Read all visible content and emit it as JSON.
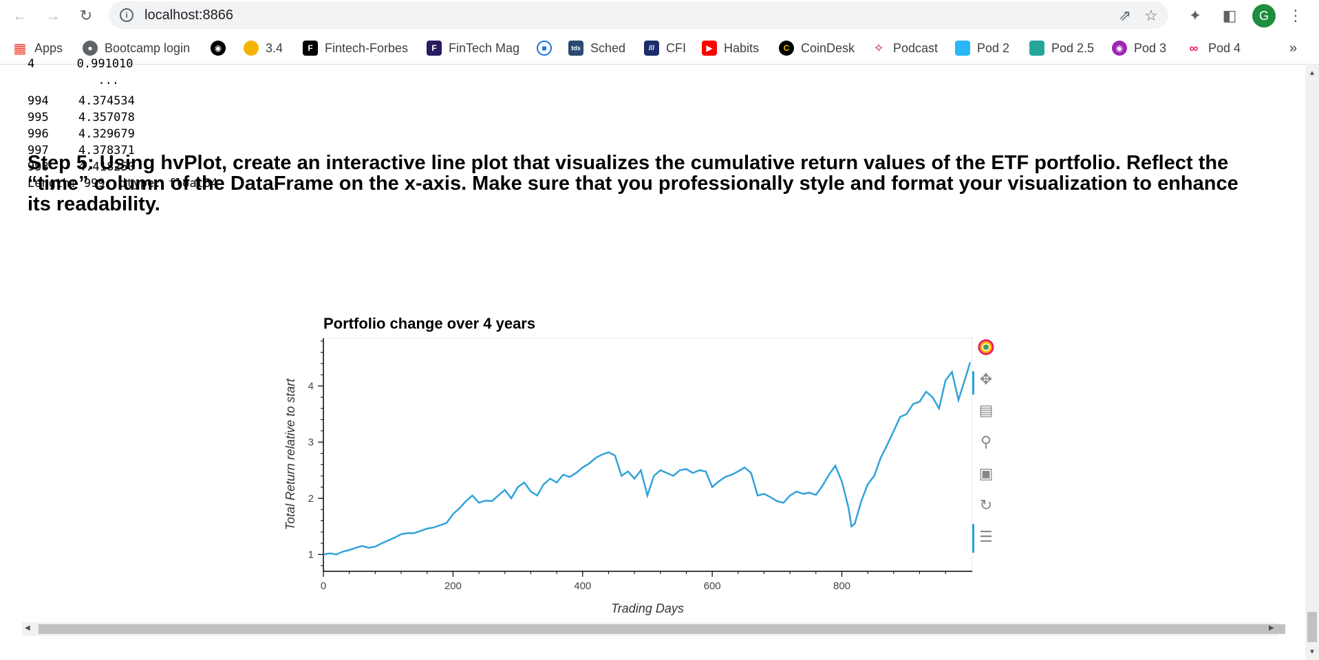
{
  "browser": {
    "url": "localhost:8866",
    "avatar_letter": "G",
    "bookmarks": [
      {
        "label": "Apps",
        "icon": "apps-grid-icon",
        "color": "#ea4335"
      },
      {
        "label": "Bootcamp login",
        "icon": "globe-icon",
        "color": "#5f6368"
      },
      {
        "label": "",
        "icon": "github-icon",
        "color": "#000000"
      },
      {
        "label": "3.4",
        "icon": "coin-icon",
        "color": "#f4b400"
      },
      {
        "label": "Fintech-Forbes",
        "icon": "forbes-icon",
        "color": "#000000"
      },
      {
        "label": "FinTech Mag",
        "icon": "fintech-mag-icon",
        "color": "#2a1a5e"
      },
      {
        "label": "",
        "icon": "circle-logo-icon",
        "color": "#1a73e8"
      },
      {
        "label": "Sched",
        "icon": "tds-icon",
        "color": "#2b4a6f"
      },
      {
        "label": "CFI",
        "icon": "cfi-icon",
        "color": "#1b2b6b"
      },
      {
        "label": "Habits",
        "icon": "youtube-icon",
        "color": "#ff0000"
      },
      {
        "label": "CoinDesk",
        "icon": "coindesk-icon",
        "color": "#000000"
      },
      {
        "label": "Podcast",
        "icon": "podcast-icon",
        "color": "#c2185b"
      },
      {
        "label": "Pod 2",
        "icon": "pod2-icon",
        "color": "#29b6f6"
      },
      {
        "label": "Pod 2.5",
        "icon": "pod25-icon",
        "color": "#26a69a"
      },
      {
        "label": "Pod 3",
        "icon": "apple-podcast-icon",
        "color": "#9c27b0"
      },
      {
        "label": "Pod 4",
        "icon": "pod4-icon",
        "color": "#e91e63"
      }
    ],
    "more_bookmarks": "»"
  },
  "output": {
    "cut_line": "4      0.991010",
    "ellipsis": "          ...",
    "rows": [
      {
        "index": "994",
        "value": "4.374534"
      },
      {
        "index": "995",
        "value": "4.357078"
      },
      {
        "index": "996",
        "value": "4.329679"
      },
      {
        "index": "997",
        "value": "4.378371"
      },
      {
        "index": "998",
        "value": "4.418250"
      }
    ],
    "summary": "Length: 999, dtype: float64"
  },
  "step_text": "Step 5: Using hvPlot, create an interactive line plot that visualizes the cumulative return values of the ETF portfolio. Reflect the “time” column of the DataFrame on the x-axis. Make sure that you professionally style and format your visualization to enhance its readability.",
  "chart_data": {
    "type": "line",
    "title": "Portfolio change over 4 years",
    "xlabel": "Trading Days",
    "ylabel": "Total Return relative to start",
    "xlim": [
      0,
      998
    ],
    "ylim": [
      0.7,
      4.85
    ],
    "xticks": [
      0,
      200,
      400,
      600,
      800
    ],
    "yticks": [
      1,
      2,
      3,
      4
    ],
    "line_color": "#30a2da",
    "series": [
      {
        "x": [
          0,
          10,
          20,
          30,
          40,
          50,
          60,
          70,
          80,
          90,
          100,
          110,
          120,
          130,
          140,
          150,
          160,
          170,
          180,
          190,
          200,
          210,
          220,
          230,
          240,
          250,
          260,
          270,
          280,
          290,
          300,
          310,
          320,
          330,
          340,
          350,
          360,
          370,
          380,
          390,
          400,
          410,
          420,
          430,
          440,
          450,
          460,
          470,
          480,
          490,
          500,
          510,
          520,
          530,
          540,
          550,
          560,
          570,
          580,
          590,
          600,
          610,
          620,
          630,
          640,
          650,
          660,
          670,
          680,
          690,
          700,
          710,
          720,
          730,
          740,
          750,
          760,
          770,
          780,
          790,
          800,
          810,
          815,
          820,
          830,
          840,
          850,
          860,
          870,
          880,
          890,
          900,
          910,
          920,
          930,
          940,
          950,
          960,
          970,
          980,
          990,
          998
        ],
        "y": [
          1.0,
          1.02,
          1.0,
          1.05,
          1.08,
          1.12,
          1.15,
          1.12,
          1.14,
          1.2,
          1.25,
          1.3,
          1.36,
          1.38,
          1.38,
          1.42,
          1.46,
          1.48,
          1.52,
          1.56,
          1.72,
          1.82,
          1.95,
          2.05,
          1.92,
          1.96,
          1.95,
          2.05,
          2.15,
          2.0,
          2.2,
          2.28,
          2.12,
          2.05,
          2.25,
          2.35,
          2.28,
          2.42,
          2.38,
          2.45,
          2.55,
          2.62,
          2.72,
          2.78,
          2.82,
          2.76,
          2.4,
          2.48,
          2.35,
          2.5,
          2.05,
          2.4,
          2.5,
          2.45,
          2.4,
          2.5,
          2.52,
          2.45,
          2.5,
          2.48,
          2.2,
          2.3,
          2.38,
          2.42,
          2.48,
          2.55,
          2.45,
          2.05,
          2.08,
          2.02,
          1.95,
          1.92,
          2.05,
          2.12,
          2.08,
          2.1,
          2.06,
          2.22,
          2.42,
          2.58,
          2.3,
          1.85,
          1.5,
          1.55,
          1.95,
          2.25,
          2.4,
          2.72,
          2.95,
          3.2,
          3.45,
          3.5,
          3.68,
          3.72,
          3.9,
          3.8,
          3.6,
          4.1,
          4.25,
          3.75,
          4.12,
          4.42
        ]
      }
    ]
  },
  "toolbar": {
    "tools": [
      "bokeh-logo-icon",
      "pan-icon",
      "box-zoom-icon",
      "wheel-zoom-icon",
      "save-icon",
      "reset-icon",
      "hover-icon"
    ]
  }
}
